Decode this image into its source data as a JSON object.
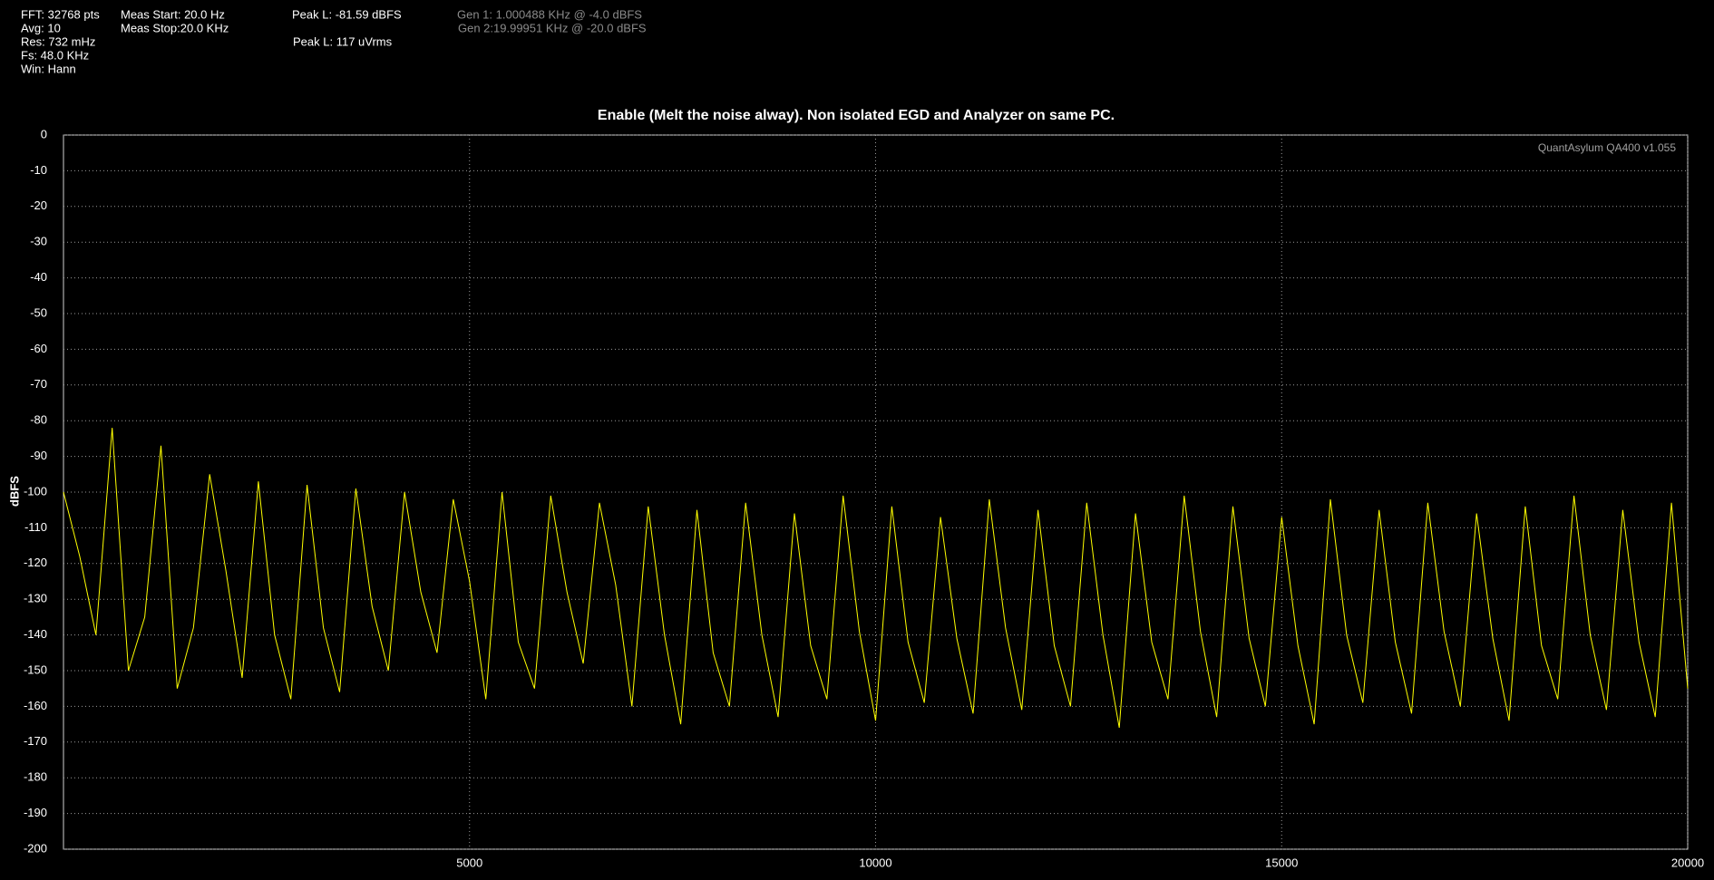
{
  "status": {
    "fft": "FFT: 32768 pts",
    "avg": "Avg: 10",
    "res": "Res: 732 mHz",
    "fs": "Fs: 48.0 KHz",
    "win": "Win: Hann",
    "meas_start": "Meas Start: 20.0 Hz",
    "meas_stop": "Meas Stop:20.0 KHz",
    "peak_dbfs": "Peak L: -81.59 dBFS",
    "peak_uvrms": "Peak L: 117 uVrms",
    "gen1": "Gen 1: 1.000488 KHz @ -4.0  dBFS",
    "gen2": "Gen 2:19.99951 KHz @ -20.0  dBFS"
  },
  "chart_data": {
    "type": "line",
    "title": "Enable (Melt the noise alway). Non isolated EGD and Analyzer on same PC.",
    "annotation": "QuantAsylum QA400 v1.055",
    "y_label": "dBFS",
    "xlim": [
      0,
      20000
    ],
    "xticks": [
      5000,
      10000,
      15000,
      20000
    ],
    "ylim": [
      -200,
      0
    ],
    "yticks": [
      0,
      -10,
      -20,
      -30,
      -40,
      -50,
      -60,
      -70,
      -80,
      -90,
      -100,
      -110,
      -120,
      -130,
      -140,
      -150,
      -160,
      -170,
      -180,
      -190,
      -200
    ],
    "grid": true,
    "x": [
      0,
      200,
      400,
      600,
      800,
      1000,
      1200,
      1400,
      1600,
      1800,
      2000,
      2200,
      2400,
      2600,
      2800,
      3000,
      3200,
      3400,
      3600,
      3800,
      4000,
      4200,
      4400,
      4600,
      4800,
      5000,
      5200,
      5400,
      5600,
      5800,
      6000,
      6200,
      6400,
      6600,
      6800,
      7000,
      7200,
      7400,
      7600,
      7800,
      8000,
      8200,
      8400,
      8600,
      8800,
      9000,
      9200,
      9400,
      9600,
      9800,
      10000,
      10200,
      10400,
      10600,
      10800,
      11000,
      11200,
      11400,
      11600,
      11800,
      12000,
      12200,
      12400,
      12600,
      12800,
      13000,
      13200,
      13400,
      13600,
      13800,
      14000,
      14200,
      14400,
      14600,
      14800,
      15000,
      15200,
      15400,
      15600,
      15800,
      16000,
      16200,
      16400,
      16600,
      16800,
      17000,
      17200,
      17400,
      17600,
      17800,
      18000,
      18200,
      18400,
      18600,
      18800,
      19000,
      19200,
      19400,
      19600,
      19800,
      20000
    ],
    "series": [
      {
        "color": "#ffff00",
        "values": [
          -100,
          -118,
          -140,
          -82,
          -150,
          -135,
          -87,
          -155,
          -138,
          -95,
          -122,
          -152,
          -97,
          -140,
          -158,
          -98,
          -138,
          -156,
          -99,
          -132,
          -150,
          -100,
          -128,
          -145,
          -102,
          -125,
          -158,
          -100,
          -142,
          -155,
          -101,
          -128,
          -148,
          -103,
          -126,
          -160,
          -104,
          -140,
          -165,
          -105,
          -145,
          -160,
          -103,
          -140,
          -163,
          -106,
          -143,
          -158,
          -101,
          -139,
          -164,
          -104,
          -142,
          -159,
          -107,
          -141,
          -162,
          -102,
          -138,
          -161,
          -105,
          -143,
          -160,
          -103,
          -140,
          -166,
          -106,
          -142,
          -158,
          -101,
          -139,
          -163,
          -104,
          -141,
          -160,
          -107,
          -143,
          -165,
          -102,
          -140,
          -159,
          -105,
          -142,
          -162,
          -103,
          -139,
          -160,
          -106,
          -141,
          -164,
          -104,
          -143,
          -158,
          -101,
          -140,
          -161,
          -105,
          -142,
          -163,
          -103,
          -155
        ]
      }
    ]
  }
}
